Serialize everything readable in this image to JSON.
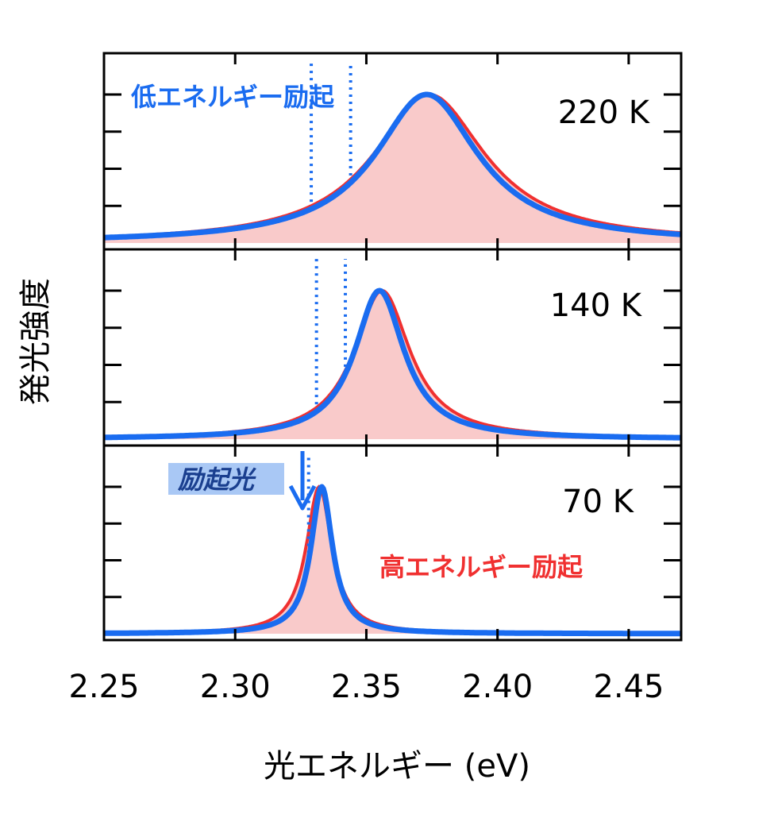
{
  "chart_data": {
    "type": "line",
    "title": "",
    "xlabel": "光エネルギー (eV)",
    "ylabel": "発光強度",
    "xlim": [
      2.25,
      2.47
    ],
    "xticks": [
      "2.25",
      "2.30",
      "2.35",
      "2.40",
      "2.45"
    ],
    "legend": [
      {
        "name": "低エネルギー励起",
        "color": "#1a6cf0"
      },
      {
        "name": "高エネルギー励起",
        "color": "#f03030"
      }
    ],
    "excitation_label": "励起光",
    "colors": {
      "blue": "#1a6cf0",
      "red": "#f03030",
      "fill": "#f9caca",
      "box": "#a9c8f5"
    },
    "panels": [
      {
        "temperature": "220 K",
        "peak_energy": 2.373,
        "fwhm": 0.05,
        "low_energy_excitation": {
          "name": "低エネルギー励起",
          "peak": 2.373,
          "fwhm": 0.048
        },
        "high_energy_excitation": {
          "name": "高エネルギー励起",
          "peak": 2.374,
          "fwhm": 0.052
        },
        "laser_spikes": [
          2.329,
          2.344
        ]
      },
      {
        "temperature": "140 K",
        "peak_energy": 2.355,
        "fwhm": 0.024,
        "low_energy_excitation": {
          "name": "低エネルギー励起",
          "peak": 2.355,
          "fwhm": 0.023
        },
        "high_energy_excitation": {
          "name": "高エネルギー励起",
          "peak": 2.356,
          "fwhm": 0.026
        },
        "laser_spikes": [
          2.331,
          2.342
        ]
      },
      {
        "temperature": "70 K",
        "peak_energy": 2.332,
        "fwhm": 0.011,
        "low_energy_excitation": {
          "name": "低エネルギー励起",
          "peak": 2.333,
          "fwhm": 0.01
        },
        "high_energy_excitation": {
          "name": "高エネルギー励起",
          "peak": 2.332,
          "fwhm": 0.012
        },
        "laser_spikes": [
          2.328
        ]
      }
    ]
  }
}
